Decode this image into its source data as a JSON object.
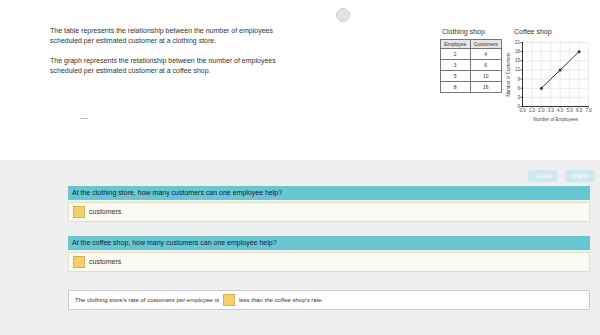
{
  "header": {
    "paragraphs": [
      "The table represents the relationship between the number of employees scheduled per estimated customer at a clothing store.",
      "The graph represents the relationship between the number of employees scheduled per estimated customer at a coffee shop."
    ]
  },
  "clothing_shop": {
    "title": "Clothing shop",
    "columns": [
      "Employee",
      "Customers"
    ],
    "rows": [
      [
        2,
        4
      ],
      [
        3,
        6
      ],
      [
        5,
        10
      ],
      [
        8,
        16
      ]
    ]
  },
  "chart_data": {
    "type": "line",
    "title": "Coffee shop",
    "x_label": "Number of Employees",
    "y_label": "Number of Customers",
    "x": [
      2,
      4,
      6
    ],
    "values": [
      6,
      12,
      18
    ],
    "color": "#333333",
    "marker": "circle",
    "grid": true,
    "xlim": [
      0,
      7
    ],
    "xticks": [
      0,
      1,
      2,
      3,
      4,
      5,
      6,
      7
    ],
    "ylim": [
      0,
      21
    ],
    "yticks": [
      0,
      3,
      6,
      9,
      12,
      15,
      18,
      21
    ]
  },
  "buttons": [
    "CLEAR",
    "CHECK"
  ],
  "questions": [
    {
      "prompt": "At the clothing store, how many customers can one employee help?",
      "unit": "customers"
    },
    {
      "prompt": "At the coffee shop, how many customers can one employee help?",
      "unit": "customers"
    }
  ],
  "statement": {
    "before": "The clothing store's rate of customers per employee is",
    "after": "less than the coffee shop's rate."
  }
}
